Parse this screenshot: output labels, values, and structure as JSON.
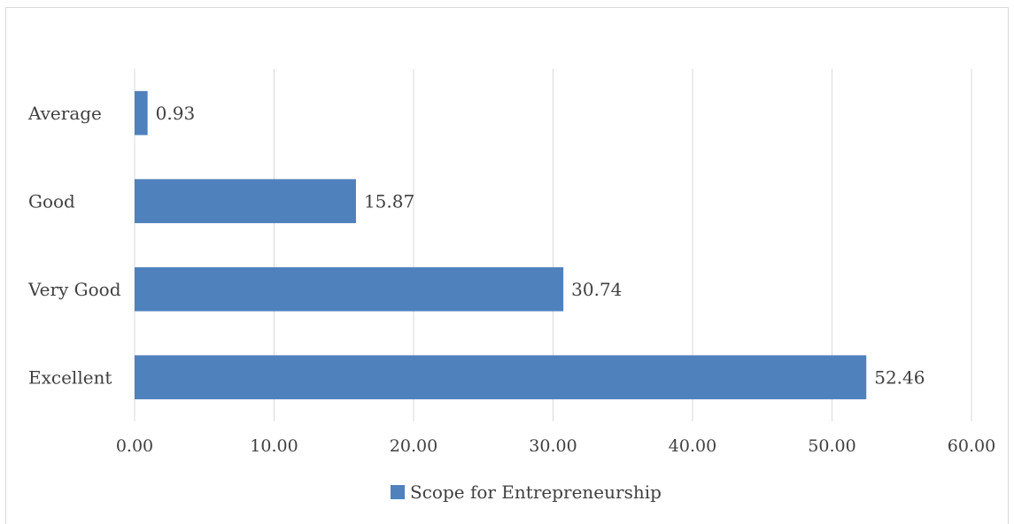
{
  "chart_data": {
    "type": "bar",
    "orientation": "horizontal",
    "categories": [
      "Excellent",
      "Very Good",
      "Good",
      "Average"
    ],
    "series": [
      {
        "name": "Scope for Entrepreneurship",
        "values": [
          52.46,
          30.74,
          15.87,
          0.93
        ],
        "data_labels": [
          "52.46",
          "30.74",
          "15.87",
          "0.93"
        ]
      }
    ],
    "xlim": [
      0,
      60
    ],
    "x_ticks": [
      "0.00",
      "10.00",
      "20.00",
      "30.00",
      "40.00",
      "50.00",
      "60.00"
    ],
    "grid": "vertical",
    "legend": "bottom",
    "colors": {
      "bar": "#4f81bd",
      "gridline": "#d9d9d9",
      "text": "#404040"
    }
  }
}
